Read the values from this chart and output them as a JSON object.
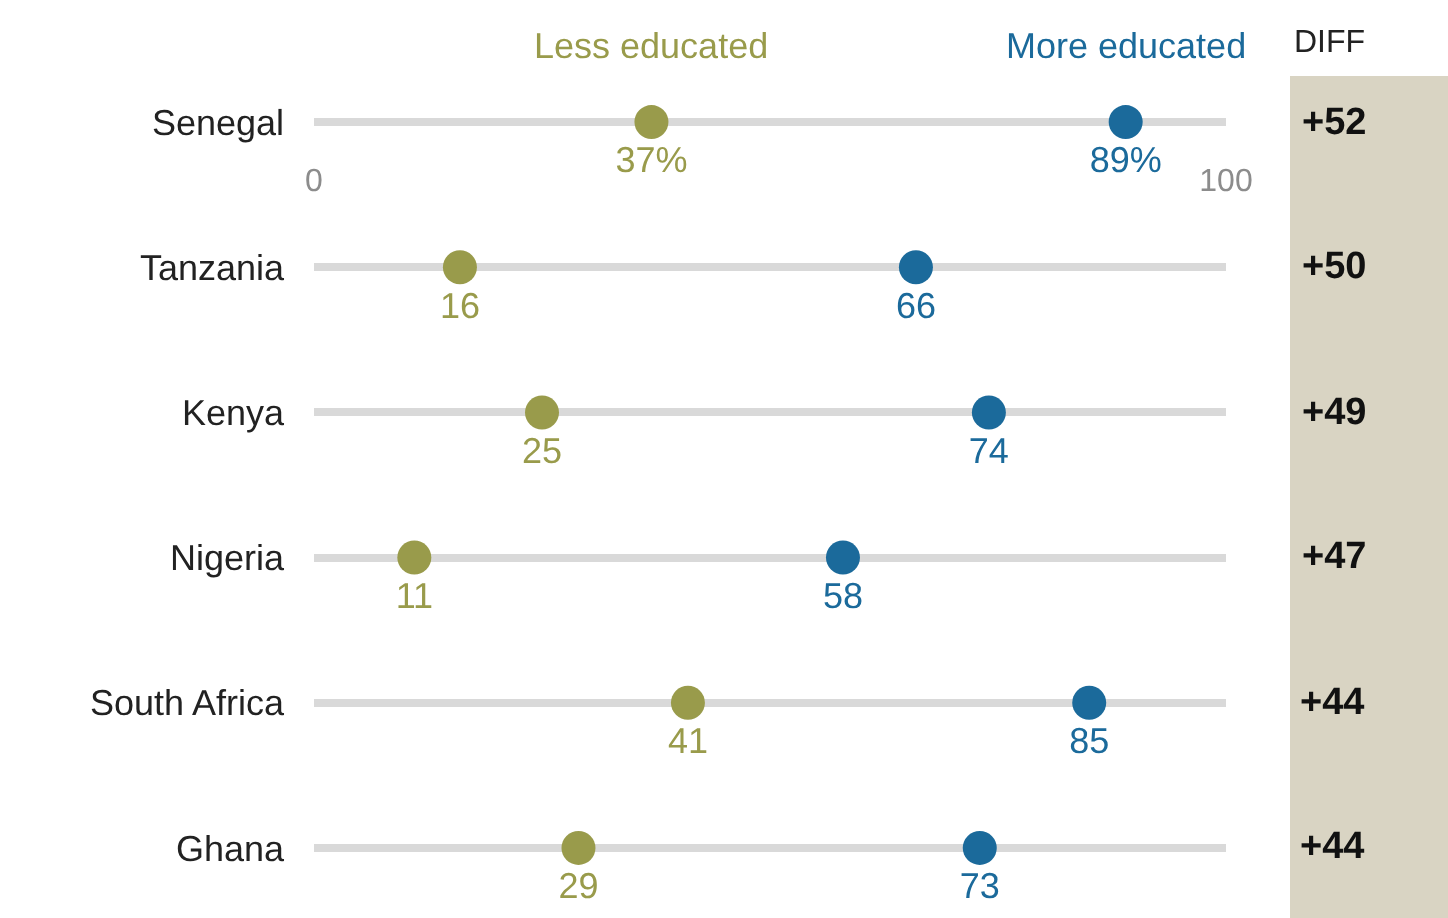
{
  "chart_data": {
    "type": "scatter",
    "orientation": "horizontal",
    "categories": [
      "Senegal",
      "Tanzania",
      "Kenya",
      "Nigeria",
      "South Africa",
      "Ghana"
    ],
    "series": [
      {
        "name": "Less educated",
        "color": "#999b4b",
        "values": [
          37,
          16,
          25,
          11,
          41,
          29
        ],
        "value_labels": [
          "37%",
          "16",
          "25",
          "11",
          "41",
          "29"
        ]
      },
      {
        "name": "More educated",
        "color": "#1b6a9b",
        "values": [
          89,
          66,
          74,
          58,
          85,
          73
        ],
        "value_labels": [
          "89%",
          "66",
          "74",
          "58",
          "85",
          "73"
        ]
      }
    ],
    "xlim": [
      0,
      100
    ],
    "xticks": [
      0,
      100
    ],
    "grid": "y",
    "legend": false,
    "marker": "circle",
    "annotations": [
      "DIFF",
      "+52",
      "+50",
      "+49",
      "+47",
      "+44",
      "+44"
    ]
  }
}
